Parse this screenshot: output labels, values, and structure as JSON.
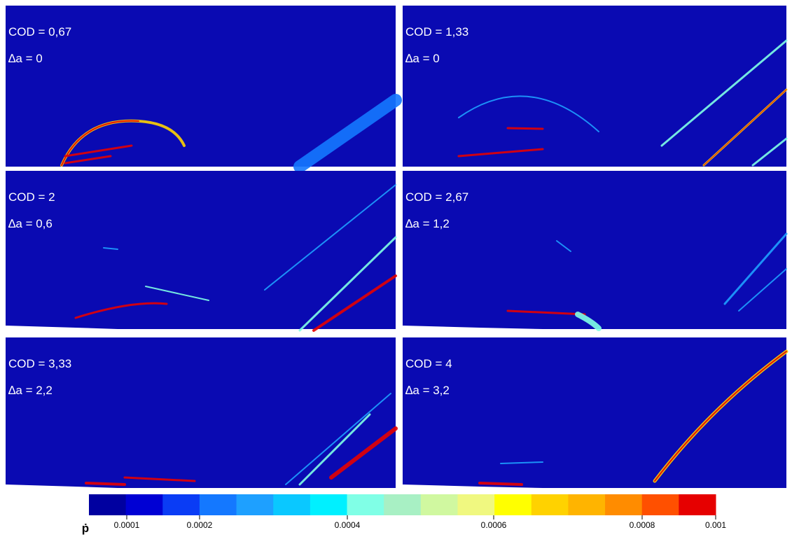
{
  "panels": [
    {
      "cod": "COD = 0,67",
      "da": "∆a = 0"
    },
    {
      "cod": "COD = 1,33",
      "da": "∆a = 0"
    },
    {
      "cod": "COD = 2",
      "da": "∆a = 0,6"
    },
    {
      "cod": "COD = 2,67",
      "da": "∆a = 1,2"
    },
    {
      "cod": "COD = 3,33",
      "da": "∆a = 2,2"
    },
    {
      "cod": "COD = 4",
      "da": "∆a = 3,2"
    }
  ],
  "colorbar": {
    "symbol": "ṗ",
    "ticks": [
      "0.0001",
      "0.0002",
      "0.0004",
      "0.0006",
      "0.0008",
      "0.001"
    ],
    "colors": [
      "#0000a0",
      "#0000d4",
      "#0a3cf5",
      "#1478ff",
      "#1ea0ff",
      "#0ac8ff",
      "#00f0ff",
      "#80ffe6",
      "#a8f0c4",
      "#d0f8a0",
      "#f0f880",
      "#ffff00",
      "#ffd200",
      "#ffb400",
      "#ff8c00",
      "#ff5000",
      "#e60000"
    ]
  }
}
